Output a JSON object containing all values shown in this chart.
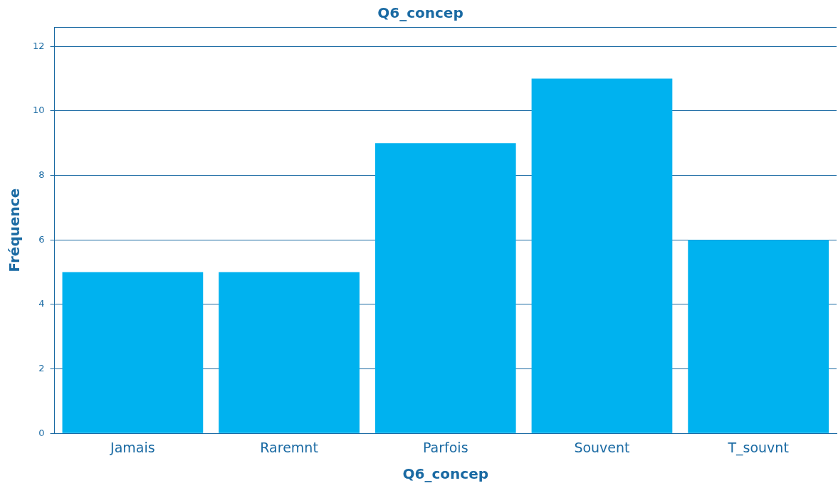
{
  "chart_data": {
    "type": "bar",
    "title": "Q6_concep",
    "xlabel": "Q6_concep",
    "ylabel": "Fréquence",
    "categories": [
      "Jamais",
      "Raremnt",
      "Parfois",
      "Souvent",
      "T_souvnt"
    ],
    "values": [
      5,
      5,
      9,
      11,
      6
    ],
    "color": "#00b2ef",
    "ylim": [
      0,
      12.6
    ],
    "yticks": [
      0,
      2,
      4,
      6,
      8,
      10,
      12
    ],
    "grid": "y",
    "legend": false
  }
}
